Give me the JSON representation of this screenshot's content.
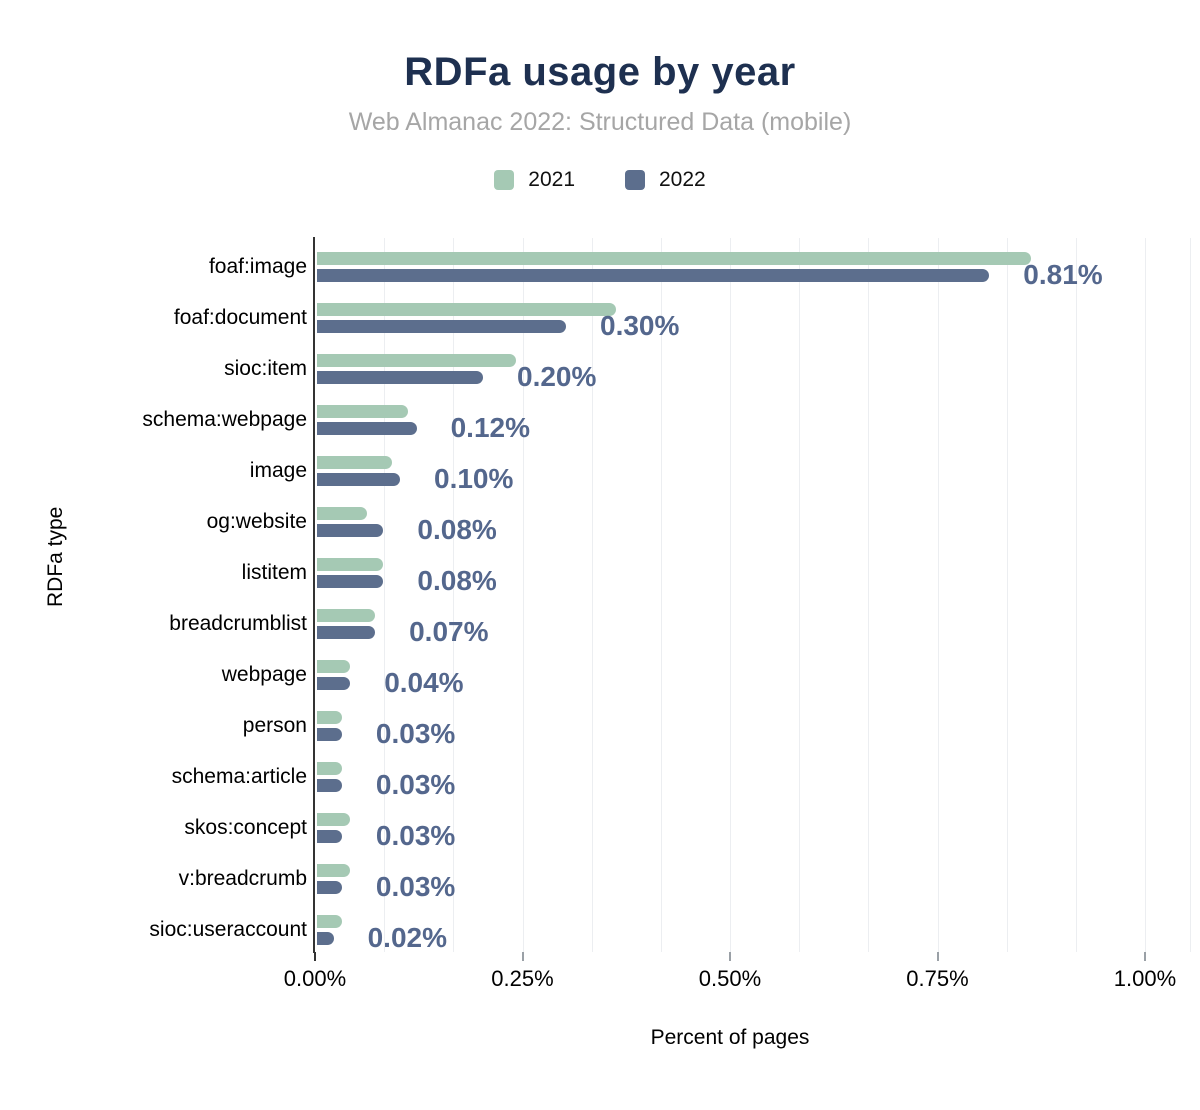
{
  "title": "RDFa usage by year",
  "subtitle": "Web Almanac 2022: Structured Data (mobile)",
  "colors": {
    "title": "#1e3050",
    "subtitle": "#a6a6a6",
    "series_2021": "#a5c9b4",
    "series_2022": "#5c6e8d",
    "value_label": "#54678d",
    "gridline": "#eceef1",
    "axis": "#333333"
  },
  "chart_data": {
    "type": "bar",
    "orientation": "horizontal",
    "title": "RDFa usage by year",
    "subtitle": "Web Almanac 2022: Structured Data (mobile)",
    "xlabel": "Percent of pages",
    "ylabel": "RDFa type",
    "xlim": [
      0,
      1.0
    ],
    "grid": true,
    "legend_position": "top",
    "categories": [
      "foaf:image",
      "foaf:document",
      "sioc:item",
      "schema:webpage",
      "image",
      "og:website",
      "listitem",
      "breadcrumblist",
      "webpage",
      "person",
      "schema:article",
      "skos:concept",
      "v:breadcrumb",
      "sioc:useraccount"
    ],
    "series": [
      {
        "name": "2021",
        "color": "#a5c9b4",
        "values": [
          0.86,
          0.36,
          0.24,
          0.11,
          0.09,
          0.06,
          0.08,
          0.07,
          0.04,
          0.03,
          0.03,
          0.04,
          0.04,
          0.03
        ]
      },
      {
        "name": "2022",
        "color": "#5c6e8d",
        "values": [
          0.81,
          0.3,
          0.2,
          0.12,
          0.1,
          0.08,
          0.08,
          0.07,
          0.04,
          0.03,
          0.03,
          0.03,
          0.03,
          0.02
        ],
        "data_labels": [
          "0.81%",
          "0.30%",
          "0.20%",
          "0.12%",
          "0.10%",
          "0.08%",
          "0.08%",
          "0.07%",
          "0.04%",
          "0.03%",
          "0.03%",
          "0.03%",
          "0.03%",
          "0.02%"
        ]
      }
    ],
    "xticks": {
      "positions": [
        0,
        0.25,
        0.5,
        0.75,
        1.0
      ],
      "labels": [
        "0.00%",
        "0.25%",
        "0.50%",
        "0.75%",
        "1.00%"
      ]
    }
  }
}
